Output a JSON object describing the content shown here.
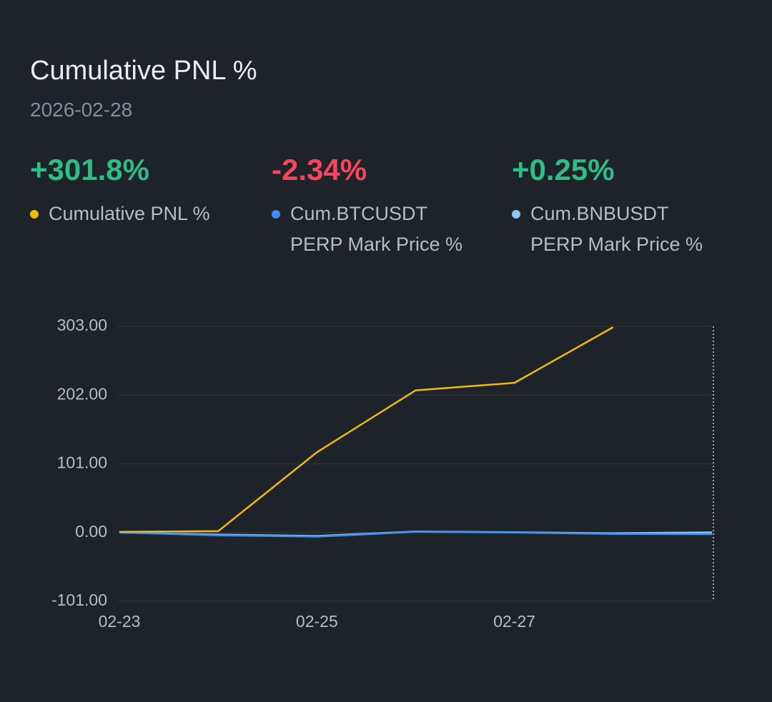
{
  "chart_data": {
    "type": "line",
    "title": "Cumulative PNL %",
    "subtitle": "2026-02-28",
    "categories": [
      "02-23",
      null,
      "02-25",
      null,
      "02-27",
      null,
      null
    ],
    "series": [
      {
        "name": "Cumulative PNL %",
        "color": "#f0b90b",
        "summary": "+301.8%",
        "summary_color": "#2ebd85",
        "values": [
          1,
          2,
          118,
          209,
          220,
          301.8,
          null
        ]
      },
      {
        "name": "Cum.BTCUSDT PERP Mark Price %",
        "color": "#3d8ef0",
        "summary": "-2.34%",
        "summary_color": "#f6465d",
        "values": [
          0,
          -4,
          -6,
          1,
          0,
          -2,
          -2.34
        ]
      },
      {
        "name": "Cum.BNBUSDT PERP Mark Price %",
        "color": "#8dc6f5",
        "summary": "+0.25%",
        "summary_color": "#2ebd85",
        "values": [
          0,
          -3,
          -5,
          1.5,
          0.5,
          -1,
          0.25
        ]
      }
    ],
    "ylim": [
      -101,
      303
    ],
    "yticks": [
      {
        "value": -101,
        "label": "-101.00"
      },
      {
        "value": 0,
        "label": "0.00"
      },
      {
        "value": 101,
        "label": "101.00"
      },
      {
        "value": 202,
        "label": "202.00"
      },
      {
        "value": 303,
        "label": "303.00"
      }
    ],
    "grid": true
  }
}
